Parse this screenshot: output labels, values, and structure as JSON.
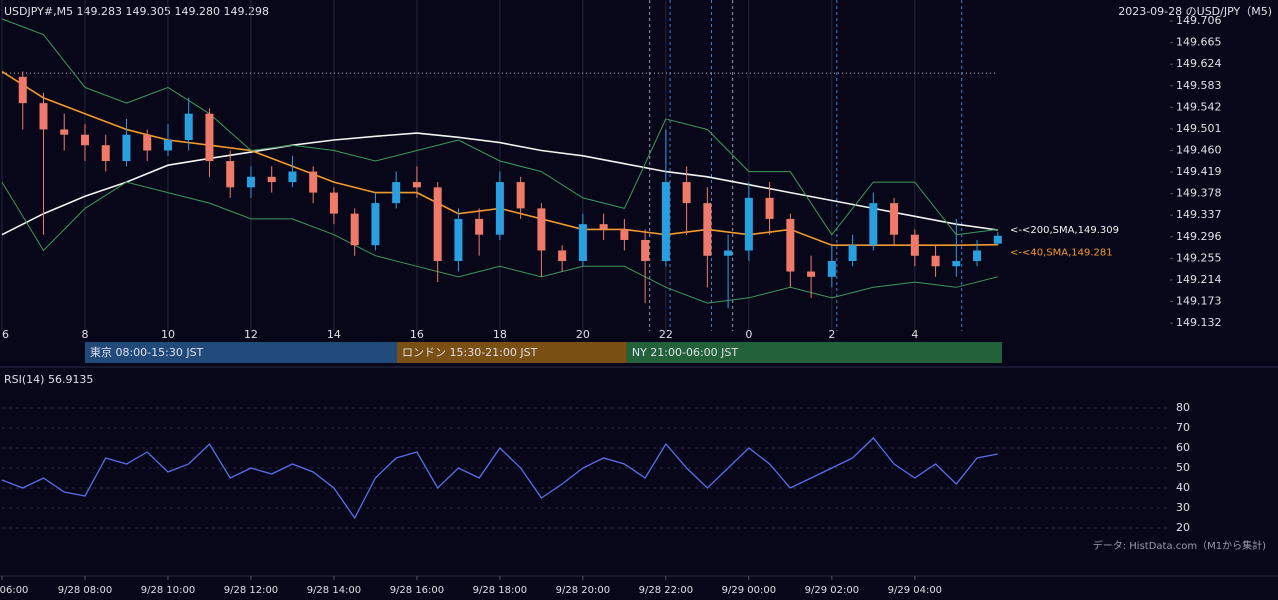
{
  "chart_data": [
    {
      "type": "candlestick",
      "title": "USDJPY#,M5 149.283 149.305 149.280 149.298",
      "subtitle": "2023-09-28 のUSD/JPY（M5)",
      "xlim": [
        0,
        28.15
      ],
      "ylim": [
        149.117,
        149.746
      ],
      "xticks": [
        {
          "value": 0,
          "label": "6"
        },
        {
          "value": 2,
          "label": "8"
        },
        {
          "value": 4,
          "label": "10"
        },
        {
          "value": 6,
          "label": "12"
        },
        {
          "value": 8,
          "label": "14"
        },
        {
          "value": 10,
          "label": "16"
        },
        {
          "value": 12,
          "label": "18"
        },
        {
          "value": 14,
          "label": "20"
        },
        {
          "value": 16,
          "label": "22"
        },
        {
          "value": 18,
          "label": "0"
        },
        {
          "value": 20,
          "label": "2"
        },
        {
          "value": 22,
          "label": "4"
        }
      ],
      "yticks": [
        149.132,
        149.173,
        149.214,
        149.255,
        149.296,
        149.337,
        149.378,
        149.419,
        {
          "value": 149.46,
          "label": "149.460"
        },
        149.501,
        149.542,
        149.583,
        149.624,
        149.665,
        149.706
      ],
      "grid": true,
      "up_color": "#2a9fe0",
      "down_color": "#f07a6a",
      "x": [
        0.5,
        1,
        1.5,
        2,
        2.5,
        3,
        3.5,
        4,
        4.5,
        5,
        5.5,
        6,
        6.5,
        7,
        7.5,
        8,
        8.5,
        9,
        9.5,
        10,
        10.5,
        11,
        11.5,
        12,
        12.5,
        13,
        13.5,
        14,
        14.5,
        15,
        15.5,
        16,
        16.5,
        17,
        17.5,
        18,
        18.5,
        19,
        19.5,
        20,
        20.5,
        21,
        21.5,
        22,
        22.5,
        23,
        23.5,
        24
      ],
      "open": [
        149.6,
        149.55,
        149.5,
        149.49,
        149.47,
        149.44,
        149.49,
        149.46,
        149.48,
        149.53,
        149.44,
        149.39,
        149.41,
        149.4,
        149.42,
        149.38,
        149.34,
        149.28,
        149.36,
        149.4,
        149.39,
        149.25,
        149.33,
        149.3,
        149.4,
        149.35,
        149.27,
        149.25,
        149.32,
        149.31,
        149.29,
        149.25,
        149.4,
        149.36,
        149.26,
        149.27,
        149.37,
        149.33,
        149.23,
        149.22,
        149.25,
        149.28,
        149.36,
        149.3,
        149.26,
        149.24,
        149.25,
        149.283
      ],
      "high": [
        149.61,
        149.57,
        149.53,
        149.51,
        149.49,
        149.52,
        149.5,
        149.51,
        149.56,
        149.54,
        149.46,
        149.43,
        149.43,
        149.45,
        149.43,
        149.39,
        149.35,
        149.38,
        149.42,
        149.43,
        149.4,
        149.35,
        149.35,
        149.42,
        149.41,
        149.36,
        149.28,
        149.34,
        149.34,
        149.33,
        149.31,
        149.5,
        149.43,
        149.39,
        149.3,
        149.4,
        149.4,
        149.34,
        149.26,
        149.28,
        149.3,
        149.38,
        149.37,
        149.31,
        149.28,
        149.33,
        149.29,
        149.305
      ],
      "low": [
        149.5,
        149.3,
        149.46,
        149.44,
        149.42,
        149.43,
        149.44,
        149.45,
        149.46,
        149.41,
        149.37,
        149.37,
        149.38,
        149.39,
        149.36,
        149.32,
        149.26,
        149.27,
        149.35,
        149.37,
        149.21,
        149.23,
        149.26,
        149.29,
        149.33,
        149.22,
        149.23,
        149.24,
        149.29,
        149.27,
        149.17,
        149.24,
        149.3,
        149.2,
        149.16,
        149.25,
        149.3,
        149.2,
        149.18,
        149.2,
        149.24,
        149.27,
        149.28,
        149.24,
        149.22,
        149.22,
        149.24,
        149.28
      ],
      "close": [
        149.55,
        149.5,
        149.49,
        149.47,
        149.44,
        149.49,
        149.46,
        149.48,
        149.53,
        149.44,
        149.39,
        149.41,
        149.4,
        149.42,
        149.38,
        149.34,
        149.28,
        149.36,
        149.4,
        149.39,
        149.25,
        149.33,
        149.3,
        149.4,
        149.35,
        149.27,
        149.25,
        149.32,
        149.31,
        149.29,
        149.25,
        149.4,
        149.36,
        149.26,
        149.27,
        149.37,
        149.33,
        149.23,
        149.22,
        149.25,
        149.28,
        149.36,
        149.3,
        149.26,
        149.24,
        149.25,
        149.27,
        149.298
      ],
      "line_x": [
        0,
        1,
        2,
        3,
        4,
        5,
        6,
        7,
        8,
        9,
        10,
        11,
        12,
        13,
        14,
        15,
        16,
        17,
        18,
        19,
        20,
        21,
        22,
        23,
        24
      ],
      "lines": [
        {
          "label": "<-<200,SMA,149.309",
          "color": "#f2f2f2",
          "values": [
            149.3,
            149.34,
            149.373,
            149.4,
            149.432,
            149.445,
            149.457,
            149.47,
            149.48,
            149.487,
            149.493,
            149.485,
            149.475,
            149.46,
            149.45,
            149.435,
            149.42,
            149.41,
            149.395,
            149.38,
            149.365,
            149.35,
            149.335,
            149.32,
            149.309
          ]
        },
        {
          "label": "<-<40,SMA,149.281",
          "color": "#f39a2c",
          "values": [
            149.61,
            149.56,
            149.53,
            149.5,
            149.48,
            149.47,
            149.46,
            149.43,
            149.4,
            149.38,
            149.38,
            149.34,
            149.35,
            149.33,
            149.31,
            149.31,
            149.3,
            149.31,
            149.3,
            149.31,
            149.28,
            149.28,
            149.28,
            149.28,
            149.281
          ]
        },
        {
          "color": "#3f9a5a",
          "values": [
            149.71,
            149.68,
            149.58,
            149.55,
            149.58,
            149.53,
            149.46,
            149.47,
            149.46,
            149.44,
            149.46,
            149.48,
            149.44,
            149.42,
            149.37,
            149.35,
            149.52,
            149.5,
            149.42,
            149.42,
            149.3,
            149.4,
            149.4,
            149.3,
            149.31
          ]
        },
        {
          "color": "#3f9a5a",
          "values": [
            149.4,
            149.27,
            149.35,
            149.4,
            149.38,
            149.36,
            149.33,
            149.33,
            149.3,
            149.26,
            149.24,
            149.22,
            149.24,
            149.22,
            149.24,
            149.24,
            149.2,
            149.17,
            149.18,
            149.2,
            149.18,
            149.2,
            149.21,
            149.2,
            149.22
          ]
        }
      ],
      "reference_line": 149.607,
      "events": [
        {
          "value": 15.61,
          "color": "#9a9aae"
        },
        {
          "value": 16.1,
          "color": "#4a80c8"
        },
        {
          "value": 17.1,
          "color": "#4a80c8"
        },
        {
          "value": 17.61,
          "color": "#9a9aae"
        },
        {
          "value": 20.12,
          "color": "#4a80c8"
        },
        {
          "value": 23.13,
          "color": "#4a80c8"
        }
      ],
      "sessions": [
        {
          "label": "東京 08:00-15:30 JST",
          "start": 2,
          "end": 9.52,
          "color": "#214a7a"
        },
        {
          "label": "ロンドン 15:30-21:00 JST",
          "start": 9.52,
          "end": 15.06,
          "color": "#7a4f14"
        },
        {
          "label": "NY 21:00-06:00 JST",
          "start": 15.06,
          "end": 24.1,
          "color": "#23613a"
        }
      ]
    },
    {
      "type": "line",
      "title": "RSI(14) 56.9135",
      "note": "データ: HistData.com（M1から集計)",
      "xlim": [
        0,
        28.15
      ],
      "ylim": [
        0,
        100
      ],
      "yticks": [
        20,
        30,
        40,
        50,
        60,
        70,
        80
      ],
      "xticks": [
        {
          "value": 0,
          "label": "06:00"
        },
        {
          "value": 2,
          "label": "9/28 08:00"
        },
        {
          "value": 4,
          "label": "9/28 10:00"
        },
        {
          "value": 6,
          "label": "9/28 12:00"
        },
        {
          "value": 8,
          "label": "9/28 14:00"
        },
        {
          "value": 10,
          "label": "9/28 16:00"
        },
        {
          "value": 12,
          "label": "9/28 18:00"
        },
        {
          "value": 14,
          "label": "9/28 20:00"
        },
        {
          "value": 16,
          "label": "9/28 22:00"
        },
        {
          "value": 18,
          "label": "9/29 00:00"
        },
        {
          "value": 20,
          "label": "9/29 02:00"
        },
        {
          "value": 22,
          "label": "9/29 04:00"
        }
      ],
      "color": "#5b6ee8",
      "x": [
        0,
        0.5,
        1,
        1.5,
        2,
        2.5,
        3,
        3.5,
        4,
        4.5,
        5,
        5.5,
        6,
        6.5,
        7,
        7.5,
        8,
        8.5,
        9,
        9.5,
        10,
        10.5,
        11,
        11.5,
        12,
        12.5,
        13,
        13.5,
        14,
        14.5,
        15,
        15.5,
        16,
        16.5,
        17,
        17.5,
        18,
        18.5,
        19,
        19.5,
        20,
        20.5,
        21,
        21.5,
        22,
        22.5,
        23,
        23.5,
        24
      ],
      "values": [
        44,
        40,
        45,
        38,
        36,
        55,
        52,
        58,
        48,
        52,
        62,
        45,
        50,
        47,
        52,
        48,
        40,
        25,
        45,
        55,
        58,
        40,
        50,
        45,
        60,
        50,
        35,
        42,
        50,
        55,
        52,
        45,
        62,
        50,
        40,
        50,
        60,
        52,
        40,
        45,
        50,
        55,
        65,
        52,
        45,
        52,
        42,
        55,
        57
      ]
    }
  ]
}
